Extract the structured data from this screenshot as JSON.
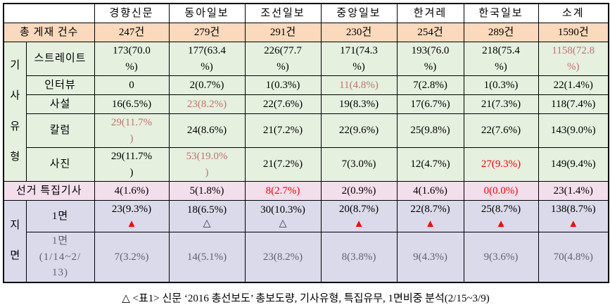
{
  "caption": "△ <표1> 신문 ‘2016 총선보도’ 총보도량, 기사유형, 특집유무, 1면비중 분석(2/15~3/9)",
  "colors": {
    "peach": "#FBD9BC",
    "green": "#E5F0DF",
    "pink": "#F3DEEC",
    "lavender": "#DADAEB",
    "rose": "#C0736E",
    "red": "#FF0000",
    "gray": "#62626E"
  },
  "table": {
    "corner": "",
    "columns": [
      "경향신문",
      "동아일보",
      "조선일보",
      "중앙일보",
      "한겨레",
      "한국일보",
      "소계"
    ],
    "rows": [
      {
        "label": "총 게재 건수",
        "merge_label": true,
        "bg": "peach",
        "cells": [
          {
            "t": "247건"
          },
          {
            "t": "279건"
          },
          {
            "t": "291건"
          },
          {
            "t": "230건"
          },
          {
            "t": "254건"
          },
          {
            "t": "289건"
          },
          {
            "t": "1590건"
          }
        ]
      },
      {
        "group": {
          "label": "기\n사\n유\n형",
          "rows": 5
        },
        "label": "스트레이트",
        "bg": "green",
        "cells": [
          {
            "t": "173(70.0\n%)"
          },
          {
            "t": "177(63.4\n%)"
          },
          {
            "t": "226(77.7\n%)"
          },
          {
            "t": "171(74.3\n%)"
          },
          {
            "t": "193(76.0\n%)"
          },
          {
            "t": "218(75.4\n%)"
          },
          {
            "t": "1158(72.8\n%)",
            "c": "rose"
          }
        ]
      },
      {
        "label": "인터뷰",
        "bg": "green",
        "cells": [
          {
            "t": "0"
          },
          {
            "t": "2(0.7%)"
          },
          {
            "t": "1(0.3%)"
          },
          {
            "t": "11(4.8%)",
            "c": "rose"
          },
          {
            "t": "7(2.8%)"
          },
          {
            "t": "1(0.3%)"
          },
          {
            "t": "22(1.4%)"
          }
        ]
      },
      {
        "label": "사설",
        "bg": "green",
        "cells": [
          {
            "t": "16(6.5%)"
          },
          {
            "t": "23(8.2%)",
            "c": "rose"
          },
          {
            "t": "22(7.6%)"
          },
          {
            "t": "19(8.3%)"
          },
          {
            "t": "17(6.7%)"
          },
          {
            "t": "21(7.3%)"
          },
          {
            "t": "118(7.4%)"
          }
        ]
      },
      {
        "label": "칼럼",
        "bg": "green",
        "cells": [
          {
            "t": "29(11.7%\n)",
            "c": "rose"
          },
          {
            "t": "24(8.6%)"
          },
          {
            "t": "21(7.2%)"
          },
          {
            "t": "22(9.6%)"
          },
          {
            "t": "25(9.8%)"
          },
          {
            "t": "22(7.6%)"
          },
          {
            "t": "143(9.0%)"
          }
        ]
      },
      {
        "label": "사진",
        "bg": "green",
        "cells": [
          {
            "t": "29(11.7%\n)"
          },
          {
            "t": "53(19.0%\n)",
            "c": "rose"
          },
          {
            "t": "21(7.2%)"
          },
          {
            "t": "7(3.0%)"
          },
          {
            "t": "12(4.7%)"
          },
          {
            "t": "27(9.3%)",
            "c": "red"
          },
          {
            "t": "149(9.4%)"
          }
        ]
      },
      {
        "label": "선거 특집기사",
        "merge_label": true,
        "bg": "pink",
        "cells": [
          {
            "t": "4(1.6%)"
          },
          {
            "t": "5(1.8%)"
          },
          {
            "t": "8(2.7%)",
            "c": "red"
          },
          {
            "t": "2(0.9%)"
          },
          {
            "t": "4(1.6%)"
          },
          {
            "t": "0(0.0%)",
            "c": "red"
          },
          {
            "t": "23(1.4%)"
          }
        ]
      },
      {
        "group": {
          "label": "지\n면",
          "rows": 2
        },
        "label": "1면",
        "bg": "purple",
        "cells": [
          {
            "t": "23(9.3%)",
            "tri": "filled"
          },
          {
            "t": "18(6.5%)",
            "tri": "outline"
          },
          {
            "t": "30(10.3%)",
            "tri": "outline"
          },
          {
            "t": "20(8.7%)",
            "tri": "filled"
          },
          {
            "t": "22(8.7%)",
            "tri": "filled"
          },
          {
            "t": "25(8.7%)",
            "tri": "filled"
          },
          {
            "t": "138(8.7%)",
            "tri": "filled"
          }
        ]
      },
      {
        "label": "1면\n(1/14~2/\n13)",
        "bg": "purple",
        "gray": true,
        "cells": [
          {
            "t": "7(3.2%)",
            "c": "gray"
          },
          {
            "t": "14(5.1%)",
            "c": "gray"
          },
          {
            "t": "23(8.2%)",
            "c": "gray"
          },
          {
            "t": "8(3.8%)",
            "c": "gray"
          },
          {
            "t": "9(4.3%)",
            "c": "gray"
          },
          {
            "t": "9(3.6%)",
            "c": "gray"
          },
          {
            "t": "70(4.8%)",
            "c": "gray"
          }
        ]
      }
    ],
    "triangle_glyphs": {
      "filled": "▲",
      "outline": "△"
    }
  }
}
